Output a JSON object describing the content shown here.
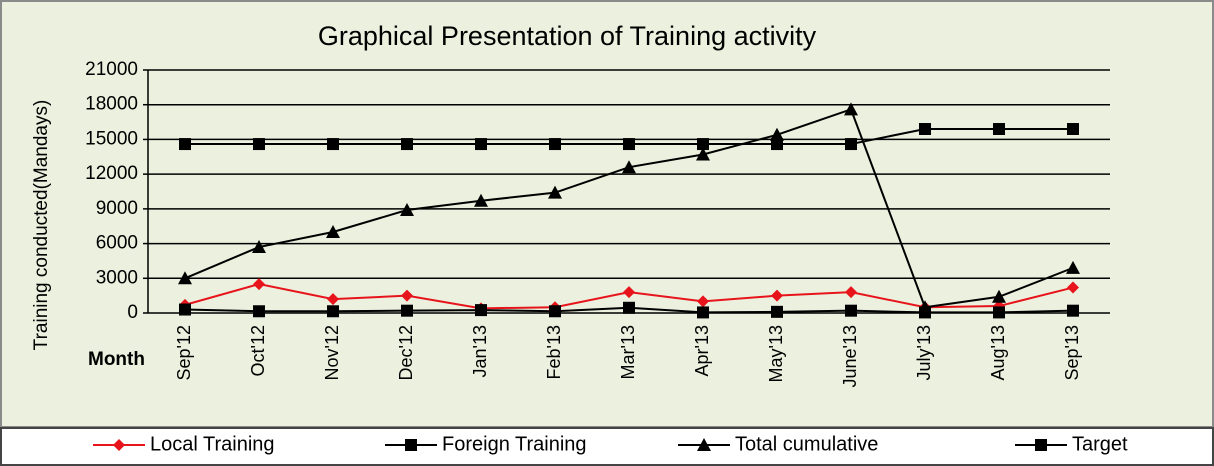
{
  "chart_data": {
    "type": "line",
    "title": "Graphical Presentation of Training activity",
    "y_label": "Training conducted(Mandays)",
    "x_label": "Month",
    "categories": [
      "Sep'12",
      "Oct'12",
      "Nov'12",
      "Dec'12",
      "Jan'13",
      "Feb'13",
      "Mar'13",
      "Apr'13",
      "May'13",
      "June'13",
      "July'13",
      "Aug'13",
      "Sep'13"
    ],
    "series": [
      {
        "name": "Local Training",
        "color": "#e8141c",
        "marker": "diamond",
        "values": [
          700,
          2500,
          1200,
          1500,
          400,
          500,
          1800,
          1000,
          1500,
          1800,
          500,
          600,
          2200
        ]
      },
      {
        "name": "Foreign Training",
        "color": "#000000",
        "marker": "square",
        "values": [
          300,
          150,
          150,
          200,
          250,
          150,
          450,
          50,
          100,
          200,
          50,
          50,
          200
        ]
      },
      {
        "name": "Total cumulative",
        "color": "#000000",
        "marker": "triangle",
        "values": [
          3000,
          5700,
          7000,
          8900,
          9700,
          10400,
          12600,
          13700,
          15400,
          17600,
          500,
          1400,
          3900
        ]
      },
      {
        "name": "Target",
        "color": "#000000",
        "marker": "square",
        "values": [
          14600,
          14600,
          14600,
          14600,
          14600,
          14600,
          14600,
          14600,
          14600,
          14600,
          15900,
          15900,
          15900
        ]
      }
    ],
    "ylim": [
      0,
      21000
    ],
    "yticks": [
      0,
      3000,
      6000,
      9000,
      12000,
      15000,
      18000,
      21000
    ],
    "grid": true,
    "legend": "bottom"
  }
}
